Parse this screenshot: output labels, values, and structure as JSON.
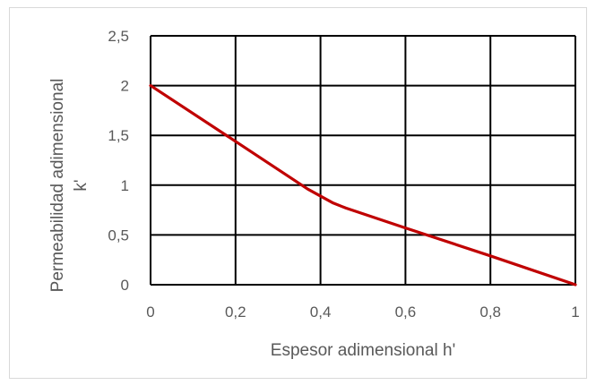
{
  "chart_data": {
    "type": "line",
    "title": "",
    "xlabel": "Espesor adimensional h'",
    "ylabel_lines": [
      "Permeabilidad adimensional",
      "k'"
    ],
    "xlim": [
      0,
      1
    ],
    "ylim": [
      0,
      2.5
    ],
    "x_ticks": [
      "0",
      "0,2",
      "0,4",
      "0,6",
      "0,8",
      "1"
    ],
    "y_ticks": [
      "0",
      "0,5",
      "1",
      "1,5",
      "2",
      "2,5"
    ],
    "grid": true,
    "legend": "none",
    "series": [
      {
        "color": "#c00000",
        "x": [
          0,
          0.2,
          0.37,
          0.43,
          0.46,
          0.6,
          0.8,
          1.0
        ],
        "y": [
          2.0,
          1.44,
          0.96,
          0.82,
          0.77,
          0.57,
          0.29,
          0.0
        ]
      }
    ]
  }
}
